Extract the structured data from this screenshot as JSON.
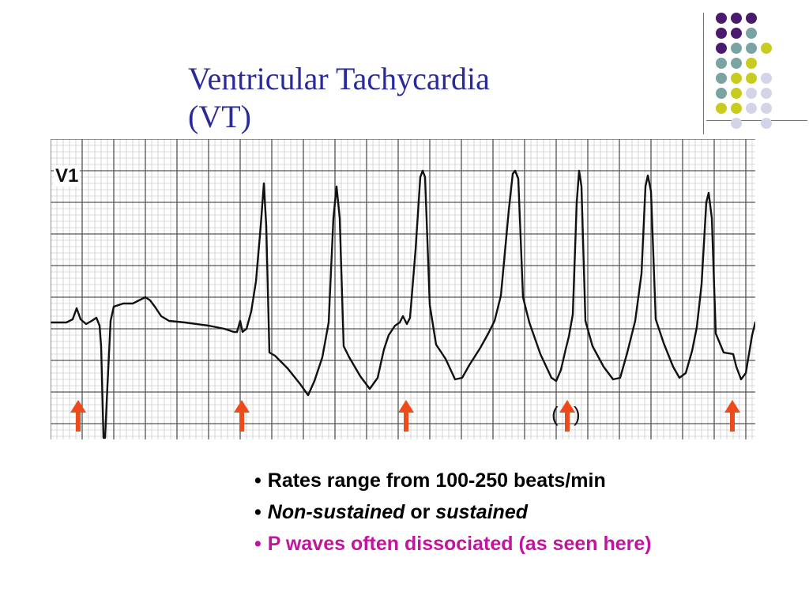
{
  "slide": {
    "title_line1": "Ventricular Tachycardia",
    "title_line2": "(VT)"
  },
  "ecg": {
    "lead_label": "V1",
    "paren_left": "(",
    "paren_right": ")"
  },
  "bullets": {
    "bullet_char": "•",
    "b1": "Rates range from 100-250 beats/min",
    "b2_part1": "Non-sustained",
    "b2_part2": " or ",
    "b2_part3": "sustained",
    "b3": "P waves often dissociated (as seen here)"
  },
  "colors": {
    "title": "#2a2a9a",
    "highlight": "#c0159e",
    "arrow": "#f04a1a",
    "dot_purple": "#4a1a6e",
    "dot_teal": "#7aa3a3",
    "dot_yellow": "#c8cc1e",
    "dot_lavender": "#d4d4e8"
  },
  "decoration": {
    "dot_grid": [
      [
        "purple",
        "purple",
        "purple",
        null,
        null
      ],
      [
        "purple",
        "purple",
        "teal",
        null,
        null
      ],
      [
        "purple",
        "teal",
        "teal",
        "yellow",
        null
      ],
      [
        "teal",
        "teal",
        "yellow",
        null,
        null
      ],
      [
        "teal",
        "yellow",
        "yellow",
        "lavender",
        null
      ],
      [
        "teal",
        "yellow",
        "lavender",
        "lavender",
        null
      ],
      [
        "yellow",
        "yellow",
        "lavender",
        "lavender",
        null
      ],
      [
        null,
        "lavender",
        null,
        "lavender",
        null
      ]
    ]
  }
}
